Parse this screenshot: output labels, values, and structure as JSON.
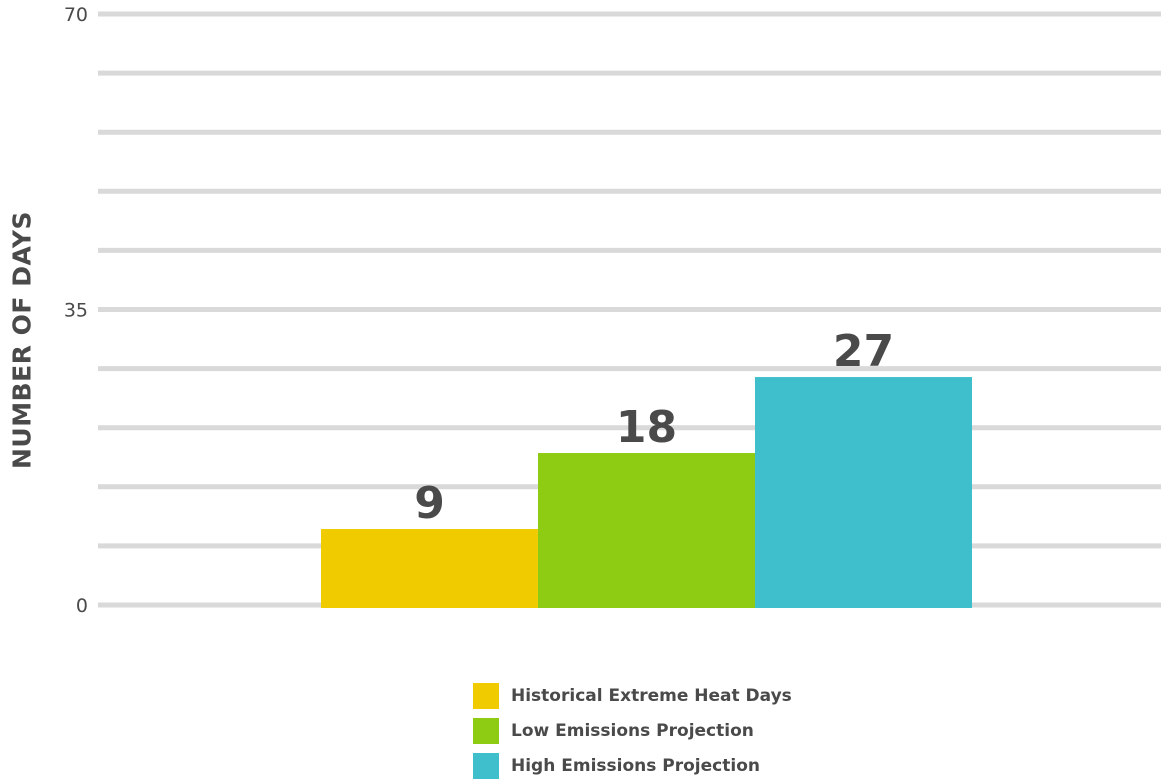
{
  "chart_data": {
    "type": "bar",
    "categories": [
      "Historical Extreme Heat Days",
      "Low Emissions Projection",
      "High Emissions Projection"
    ],
    "values": [
      9,
      18,
      27
    ],
    "data_labels": [
      "9",
      "18",
      "27"
    ],
    "colors": [
      "#f0cb00",
      "#8dcc13",
      "#3fbfcc"
    ],
    "ylabel": "NUMBER OF DAYS",
    "yticks": [
      "0",
      "35",
      "70"
    ],
    "ylim": [
      0,
      70
    ],
    "grid": true,
    "legend": "bottom-center"
  }
}
